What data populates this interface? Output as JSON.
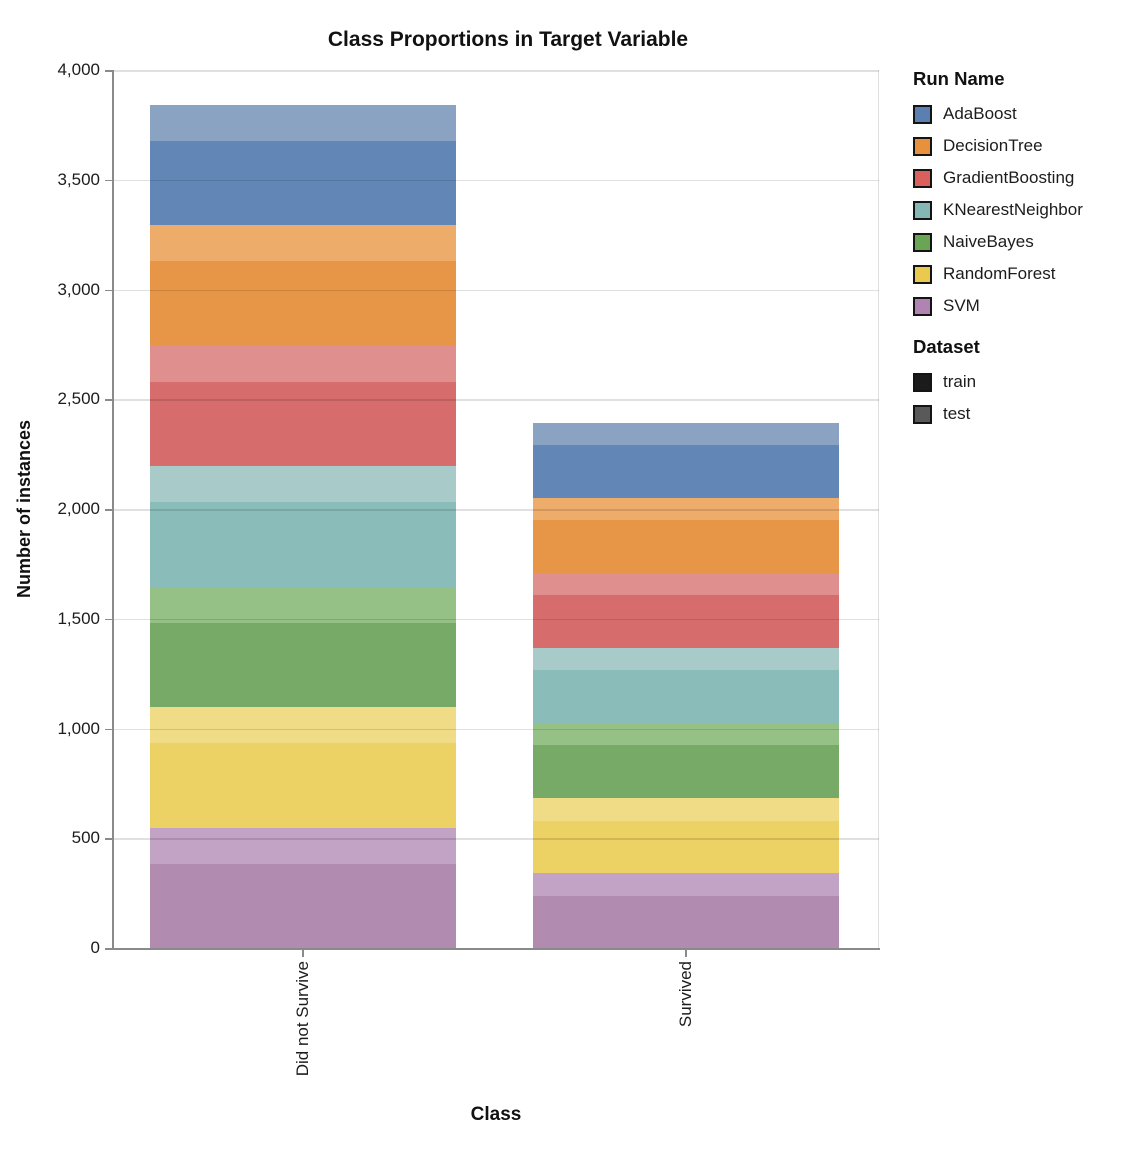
{
  "chart_data": {
    "type": "bar",
    "stacked": true,
    "title": "Class Proportions in Target Variable",
    "xlabel": "Class",
    "ylabel": "Number of instances",
    "categories": [
      "Did not Survive",
      "Survived"
    ],
    "ylim": [
      0,
      4000
    ],
    "grid": true,
    "legend_position": "right",
    "yticks": [
      {
        "value": 0,
        "label": "0"
      },
      {
        "value": 500,
        "label": "500"
      },
      {
        "value": 1000,
        "label": "1,000"
      },
      {
        "value": 1500,
        "label": "1,500"
      },
      {
        "value": 2000,
        "label": "2,000"
      },
      {
        "value": 2500,
        "label": "2,500"
      },
      {
        "value": 3000,
        "label": "3,000"
      },
      {
        "value": 3500,
        "label": "3,500"
      },
      {
        "value": 4000,
        "label": "4,000"
      }
    ],
    "stack_order_bottom_to_top": [
      "SVM",
      "RandomForest",
      "NaiveBayes",
      "KNearestNeighbor",
      "GradientBoosting",
      "DecisionTree",
      "AdaBoost"
    ],
    "dataset_order_bottom_to_top": [
      "train",
      "test"
    ],
    "series": [
      {
        "run": "AdaBoost",
        "legend_color": "#5a7fb0",
        "train": {
          "color": "#6286b6",
          "values": [
            384,
            239
          ]
        },
        "test": {
          "color": "#8ba3c2",
          "values": [
            165,
            103
          ]
        }
      },
      {
        "run": "DecisionTree",
        "legend_color": "#e8913d",
        "train": {
          "color": "#e79546",
          "values": [
            384,
            239
          ]
        },
        "test": {
          "color": "#eeac6b",
          "values": [
            165,
            103
          ]
        }
      },
      {
        "run": "GradientBoosting",
        "legend_color": "#d9605c",
        "train": {
          "color": "#d66d6c",
          "values": [
            384,
            239
          ]
        },
        "test": {
          "color": "#de8f8e",
          "values": [
            165,
            103
          ]
        }
      },
      {
        "run": "KNearestNeighbor",
        "legend_color": "#85b8b5",
        "train": {
          "color": "#8abcb9",
          "values": [
            384,
            239
          ]
        },
        "test": {
          "color": "#a8cbc9",
          "values": [
            165,
            103
          ]
        }
      },
      {
        "run": "NaiveBayes",
        "legend_color": "#6aa556",
        "train": {
          "color": "#76aa66",
          "values": [
            384,
            239
          ]
        },
        "test": {
          "color": "#95c086",
          "values": [
            165,
            103
          ]
        }
      },
      {
        "run": "RandomForest",
        "legend_color": "#e9c94e",
        "train": {
          "color": "#ecd165",
          "values": [
            384,
            239
          ]
        },
        "test": {
          "color": "#f0db87",
          "values": [
            165,
            103
          ]
        }
      },
      {
        "run": "SVM",
        "legend_color": "#b083b2",
        "train": {
          "color": "#b18cb0",
          "values": [
            384,
            239
          ]
        },
        "test": {
          "color": "#c2a3c5",
          "values": [
            165,
            103
          ]
        }
      }
    ],
    "totals": [
      3843,
      2394
    ],
    "legend": {
      "run_title": "Run Name",
      "dataset_title": "Dataset",
      "datasets": [
        {
          "label": "train",
          "color": "#1b1b1b"
        },
        {
          "label": "test",
          "color": "#595959"
        }
      ]
    }
  }
}
